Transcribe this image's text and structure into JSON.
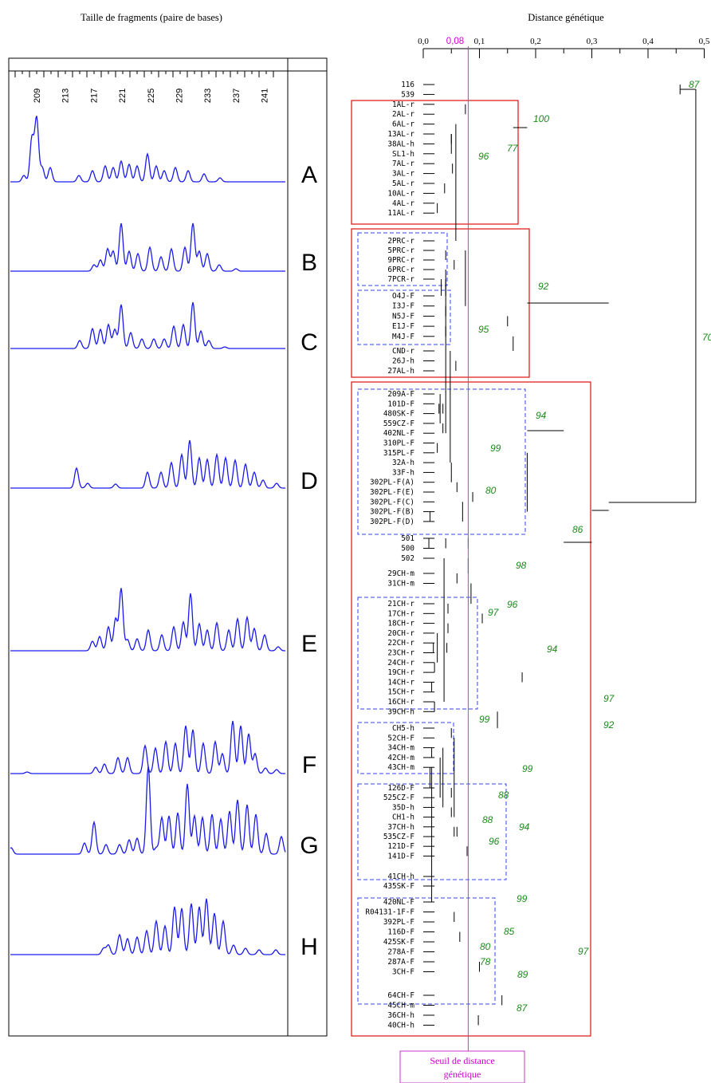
{
  "left_panel": {
    "title": "Taille de fragments (paire de bases)",
    "scale_labels": [
      "209",
      "213",
      "217",
      "221",
      "225",
      "229",
      "233",
      "237",
      "241"
    ],
    "profile_labels": [
      "A",
      "B",
      "C",
      "D",
      "E",
      "F",
      "G",
      "H"
    ]
  },
  "dendrogram": {
    "title": "Distance génétique",
    "axis_ticks": [
      "0,0",
      "0,1",
      "0,2",
      "0,3",
      "0,4",
      "0,5"
    ],
    "axis_tick_values": [
      0.0,
      0.1,
      0.2,
      0.3,
      0.4,
      0.5
    ],
    "threshold_value": 0.08,
    "threshold_label": "0,08",
    "threshold_caption_line1": "Seuil de distance",
    "threshold_caption_line2": "génétique",
    "leaves": [
      "116",
      "539",
      "1AL-r",
      "2AL-r",
      "6AL-r",
      "13AL-r",
      "38AL-h",
      "SL1-h",
      "7AL-r",
      "3AL-r",
      "5AL-r",
      "10AL-r",
      "4AL-r",
      "11AL-r",
      "2PRC-r",
      "5PRC-r",
      "9PRC-r",
      "6PRC-r",
      "7PCR-r",
      "O4J-F",
      "I3J-F",
      "N5J-F",
      "E1J-F",
      "M4J-F",
      "CND-r",
      "26J-h",
      "27AL-h",
      "209A-F",
      "101D-F",
      "480SK-F",
      "559CZ-F",
      "402NL-F",
      "310PL-F",
      "315PL-F",
      "32A-h",
      "33F-h",
      "302PL-F(A)",
      "302PL-F(E)",
      "302PL-F(C)",
      "302PL-F(B)",
      "302PL-F(D)",
      "501",
      "500",
      "502",
      "29CH-m",
      "31CH-m",
      "21CH-r",
      "17CH-r",
      "18CH-r",
      "20CH-r",
      "22CH-r",
      "23CH-r",
      "24CH-r",
      "19CH-r",
      "14CH-r",
      "15CH-r",
      "16CH-r",
      "39CH-h",
      "CH5-h",
      "52CH-F",
      "34CH-m",
      "42CH-m",
      "43CH-m",
      "126D-F",
      "525CZ-F",
      "35D-h",
      "CH1-h",
      "37CH-h",
      "535CZ-F",
      "121D-F",
      "141D-F",
      "41CH-h",
      "435SK-F",
      "420NL-F",
      "R04131-1F-F",
      "392PL-F",
      "116D-F",
      "425SK-F",
      "278A-F",
      "287A-F",
      "3CH-F",
      "64CH-F",
      "45CH-m",
      "36CH-h",
      "40CH-h"
    ],
    "bootstrap_values": [
      "87",
      "100",
      "77",
      "96",
      "92",
      "95",
      "70",
      "94",
      "99",
      "80",
      "86",
      "98",
      "96",
      "97",
      "94",
      "99",
      "99",
      "88",
      "88",
      "94",
      "96",
      "97",
      "92",
      "99",
      "85",
      "80",
      "78",
      "97",
      "89",
      "87"
    ]
  }
}
